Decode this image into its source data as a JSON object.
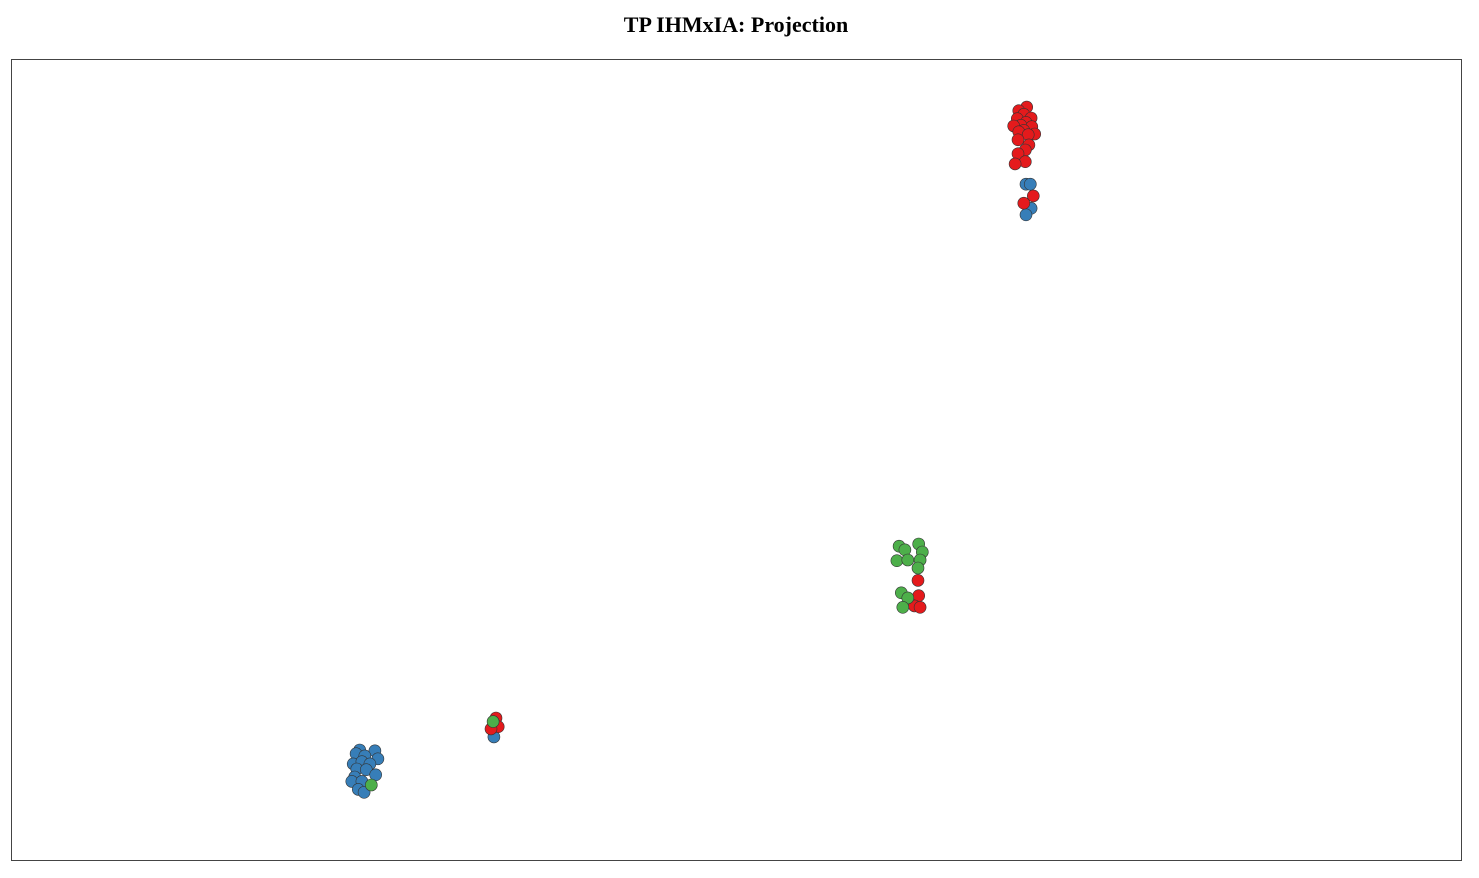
{
  "chart_data": {
    "type": "scatter",
    "title": "TP IHMxIA: Projection",
    "xlim": [
      -10,
      10
    ],
    "ylim": [
      -5.5,
      5.5
    ],
    "grid": false,
    "axes_visible": false,
    "legend": "none",
    "frame_color": "#444444",
    "marker_stroke": "#333333",
    "series": [
      {
        "color": "#377eb8",
        "x": [
          4.0,
          4.06,
          4.07,
          4.0,
          -3.34,
          -5.19,
          -5.24,
          -4.98,
          -5.12,
          -4.94,
          -5.28,
          -5.16,
          -5.05,
          -5.23,
          -5.1,
          -4.97,
          -5.26,
          -5.3,
          -5.16,
          -5.21,
          -5.13
        ],
        "y": [
          3.78,
          3.78,
          3.45,
          3.36,
          -3.81,
          -3.99,
          -4.04,
          -4.0,
          -4.07,
          -4.11,
          -4.18,
          -4.15,
          -4.18,
          -4.25,
          -4.26,
          -4.33,
          -4.36,
          -4.42,
          -4.42,
          -4.53,
          -4.57
        ]
      },
      {
        "color": "#e41a1c",
        "x": [
          4.01,
          3.9,
          3.97,
          4.07,
          3.88,
          4.0,
          3.93,
          3.83,
          4.08,
          3.97,
          3.9,
          4.12,
          4.03,
          3.89,
          4.04,
          3.99,
          3.89,
          3.99,
          3.85,
          4.1,
          3.97,
          2.51,
          2.52,
          2.46,
          2.54,
          -3.31,
          -3.28,
          -3.38
        ],
        "y": [
          4.84,
          4.79,
          4.74,
          4.69,
          4.68,
          4.63,
          4.59,
          4.58,
          4.57,
          4.52,
          4.5,
          4.47,
          4.46,
          4.39,
          4.32,
          4.25,
          4.2,
          4.09,
          4.06,
          3.62,
          3.52,
          -1.66,
          -1.87,
          -2.01,
          -2.03,
          -3.55,
          -3.67,
          -3.7
        ]
      },
      {
        "color": "#4daf4a",
        "x": [
          2.25,
          2.33,
          2.52,
          2.57,
          2.22,
          2.37,
          2.54,
          2.51,
          2.28,
          2.37,
          2.3,
          -3.35,
          -5.03
        ],
        "y": [
          -1.19,
          -1.24,
          -1.16,
          -1.27,
          -1.39,
          -1.38,
          -1.38,
          -1.49,
          -1.83,
          -1.9,
          -2.03,
          -3.6,
          -4.47
        ]
      }
    ]
  }
}
